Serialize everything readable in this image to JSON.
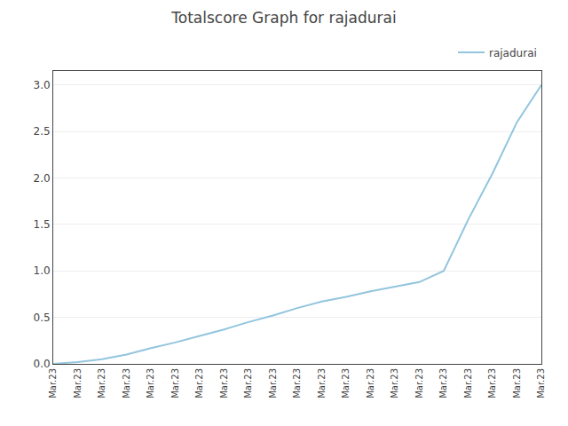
{
  "chart_data": {
    "type": "line",
    "title": "Totalscore Graph for rajadurai",
    "categories": [
      "Mar.23",
      "Mar.23",
      "Mar.23",
      "Mar.23",
      "Mar.23",
      "Mar.23",
      "Mar.23",
      "Mar.23",
      "Mar.23",
      "Mar.23",
      "Mar.23",
      "Mar.23",
      "Mar.23",
      "Mar.23",
      "Mar.23",
      "Mar.23",
      "Mar.23",
      "Mar.23",
      "Mar.23",
      "Mar.23",
      "Mar.23"
    ],
    "series": [
      {
        "name": "rajadurai",
        "color": "#92c5de",
        "values": [
          0.0,
          0.02,
          0.05,
          0.1,
          0.17,
          0.23,
          0.3,
          0.37,
          0.45,
          0.52,
          0.6,
          0.67,
          0.72,
          0.78,
          0.83,
          0.88,
          1.0,
          1.55,
          2.05,
          2.6,
          3.0
        ]
      }
    ],
    "ylim": [
      0.0,
      3.15
    ],
    "yticks": [
      {
        "value": 0,
        "label": "0.0"
      },
      0.5,
      {
        "value": 1,
        "label": "1.0"
      },
      1.5,
      {
        "value": 2,
        "label": "2.0"
      },
      2.5,
      {
        "value": 3,
        "label": "3.0"
      }
    ],
    "grid": true,
    "legend": "upper right"
  }
}
